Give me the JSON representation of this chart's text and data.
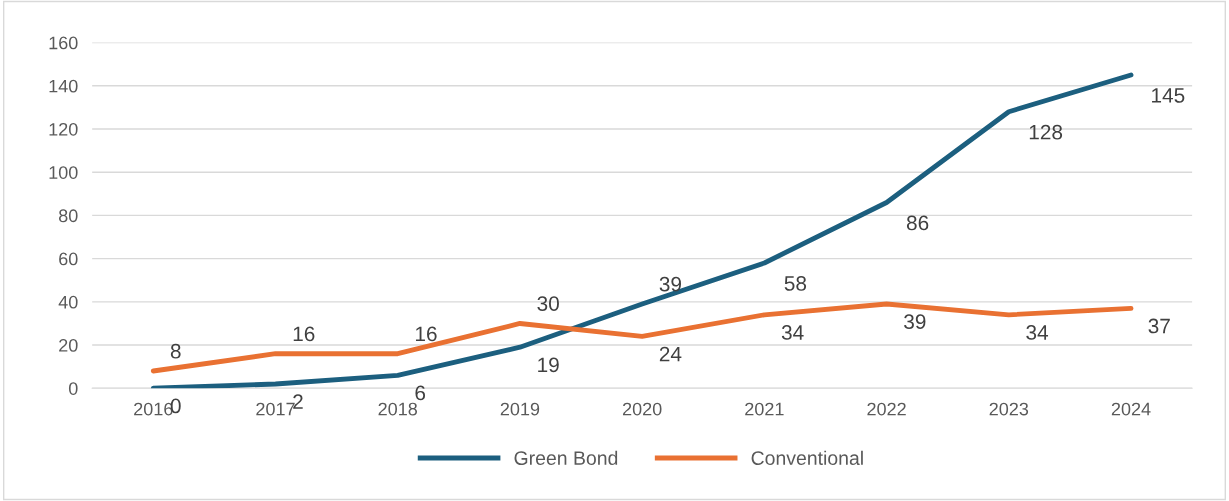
{
  "chart_data": {
    "type": "line",
    "categories": [
      "2016",
      "2017",
      "2018",
      "2019",
      "2020",
      "2021",
      "2022",
      "2023",
      "2024"
    ],
    "series": [
      {
        "name": "Green Bond",
        "color": "#1c5f7f",
        "values": [
          0,
          2,
          6,
          19,
          39,
          58,
          86,
          128,
          145
        ]
      },
      {
        "name": "Conventional",
        "color": "#e97132",
        "values": [
          8,
          16,
          16,
          30,
          24,
          34,
          39,
          34,
          37
        ]
      }
    ],
    "ylim": [
      0,
      160
    ],
    "yticks": [
      0,
      20,
      40,
      60,
      80,
      100,
      120,
      140,
      160
    ],
    "grid": "y",
    "legend": "bottom",
    "data_labels": true,
    "marker": "none",
    "line_style": "solid"
  }
}
